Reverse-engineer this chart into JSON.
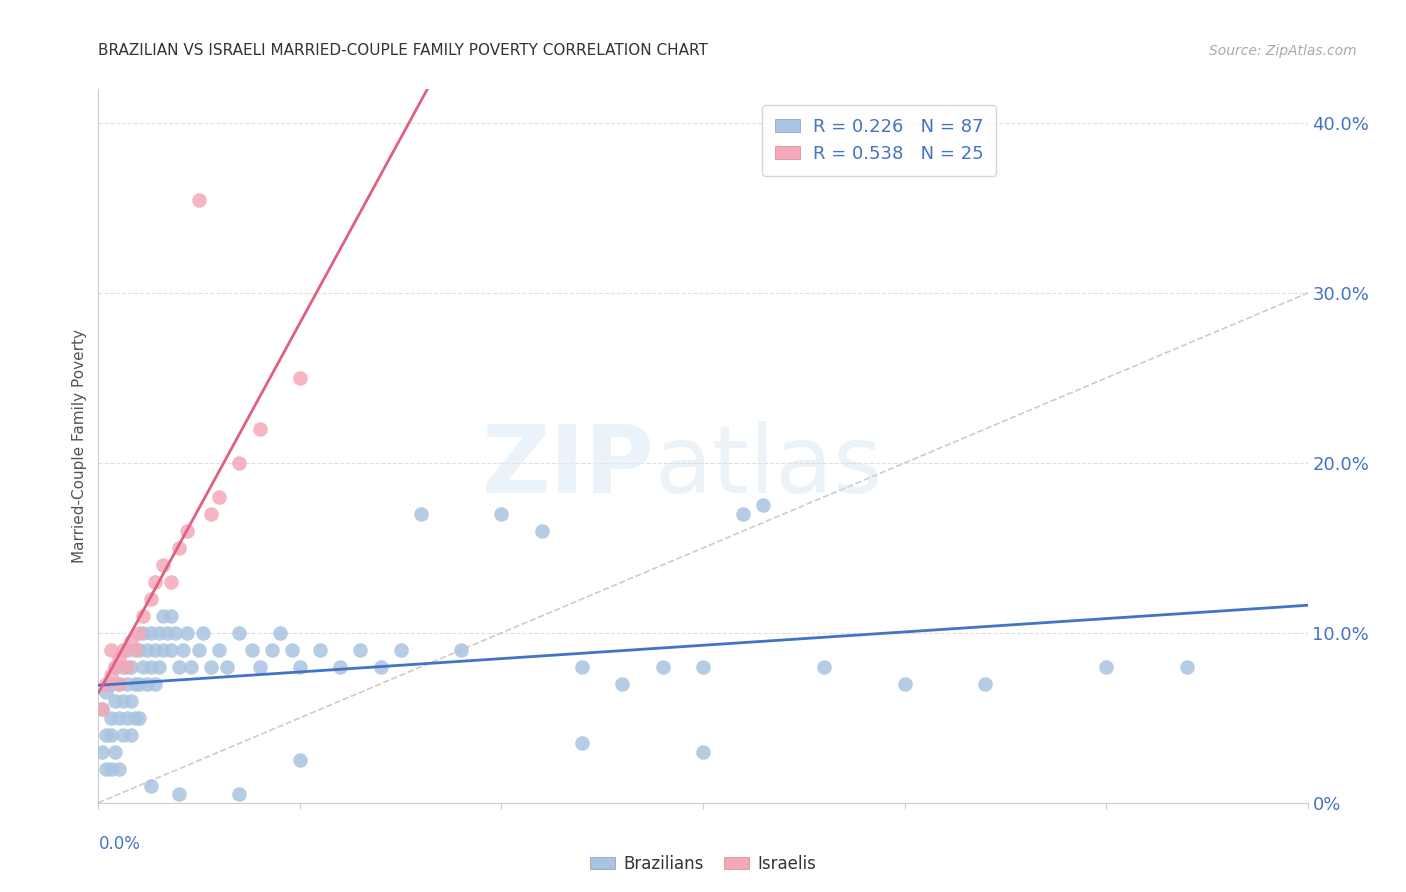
{
  "title": "BRAZILIAN VS ISRAELI MARRIED-COUPLE FAMILY POVERTY CORRELATION CHART",
  "source": "Source: ZipAtlas.com",
  "ylabel": "Married-Couple Family Poverty",
  "xlim": [
    0.0,
    0.3
  ],
  "ylim": [
    0.0,
    0.42
  ],
  "brazilian_color": "#a8c4e0",
  "israeli_color": "#f4a8b8",
  "line_blue": "#4472c4",
  "line_pink": "#e06080",
  "diagonal_color": "#cccccc",
  "R_brazil": 0.226,
  "N_brazil": 87,
  "R_israel": 0.538,
  "N_israel": 25,
  "brazil_x": [
    0.001,
    0.001,
    0.002,
    0.002,
    0.002,
    0.003,
    0.003,
    0.003,
    0.003,
    0.004,
    0.004,
    0.004,
    0.005,
    0.005,
    0.005,
    0.006,
    0.006,
    0.006,
    0.007,
    0.007,
    0.007,
    0.008,
    0.008,
    0.008,
    0.009,
    0.009,
    0.01,
    0.01,
    0.01,
    0.011,
    0.011,
    0.012,
    0.012,
    0.013,
    0.013,
    0.014,
    0.014,
    0.015,
    0.015,
    0.016,
    0.016,
    0.017,
    0.018,
    0.018,
    0.019,
    0.02,
    0.021,
    0.022,
    0.023,
    0.025,
    0.026,
    0.028,
    0.03,
    0.032,
    0.035,
    0.038,
    0.04,
    0.043,
    0.045,
    0.048,
    0.05,
    0.055,
    0.06,
    0.065,
    0.07,
    0.075,
    0.08,
    0.09,
    0.1,
    0.11,
    0.12,
    0.13,
    0.14,
    0.15,
    0.16,
    0.18,
    0.2,
    0.22,
    0.25,
    0.27,
    0.013,
    0.02,
    0.035,
    0.05,
    0.12,
    0.15,
    0.165
  ],
  "brazil_y": [
    0.03,
    0.055,
    0.04,
    0.065,
    0.02,
    0.05,
    0.07,
    0.04,
    0.02,
    0.06,
    0.08,
    0.03,
    0.07,
    0.05,
    0.02,
    0.08,
    0.06,
    0.04,
    0.09,
    0.07,
    0.05,
    0.08,
    0.06,
    0.04,
    0.07,
    0.05,
    0.09,
    0.07,
    0.05,
    0.1,
    0.08,
    0.09,
    0.07,
    0.1,
    0.08,
    0.09,
    0.07,
    0.1,
    0.08,
    0.11,
    0.09,
    0.1,
    0.11,
    0.09,
    0.1,
    0.08,
    0.09,
    0.1,
    0.08,
    0.09,
    0.1,
    0.08,
    0.09,
    0.08,
    0.1,
    0.09,
    0.08,
    0.09,
    0.1,
    0.09,
    0.08,
    0.09,
    0.08,
    0.09,
    0.08,
    0.09,
    0.17,
    0.09,
    0.17,
    0.16,
    0.08,
    0.07,
    0.08,
    0.08,
    0.17,
    0.08,
    0.07,
    0.07,
    0.08,
    0.08,
    0.01,
    0.005,
    0.005,
    0.025,
    0.035,
    0.03,
    0.175
  ],
  "israel_x": [
    0.001,
    0.002,
    0.003,
    0.003,
    0.004,
    0.005,
    0.005,
    0.006,
    0.007,
    0.008,
    0.009,
    0.01,
    0.011,
    0.013,
    0.014,
    0.016,
    0.018,
    0.02,
    0.022,
    0.025,
    0.028,
    0.03,
    0.035,
    0.04,
    0.05
  ],
  "israel_y": [
    0.055,
    0.07,
    0.075,
    0.09,
    0.08,
    0.07,
    0.085,
    0.09,
    0.08,
    0.095,
    0.09,
    0.1,
    0.11,
    0.12,
    0.13,
    0.14,
    0.13,
    0.15,
    0.16,
    0.355,
    0.17,
    0.18,
    0.2,
    0.22,
    0.25
  ],
  "right_ytick_vals": [
    0.0,
    0.1,
    0.2,
    0.3,
    0.4
  ],
  "right_ytick_labels": [
    "0%",
    "10.0%",
    "20.0%",
    "30.0%",
    "40.0%"
  ]
}
